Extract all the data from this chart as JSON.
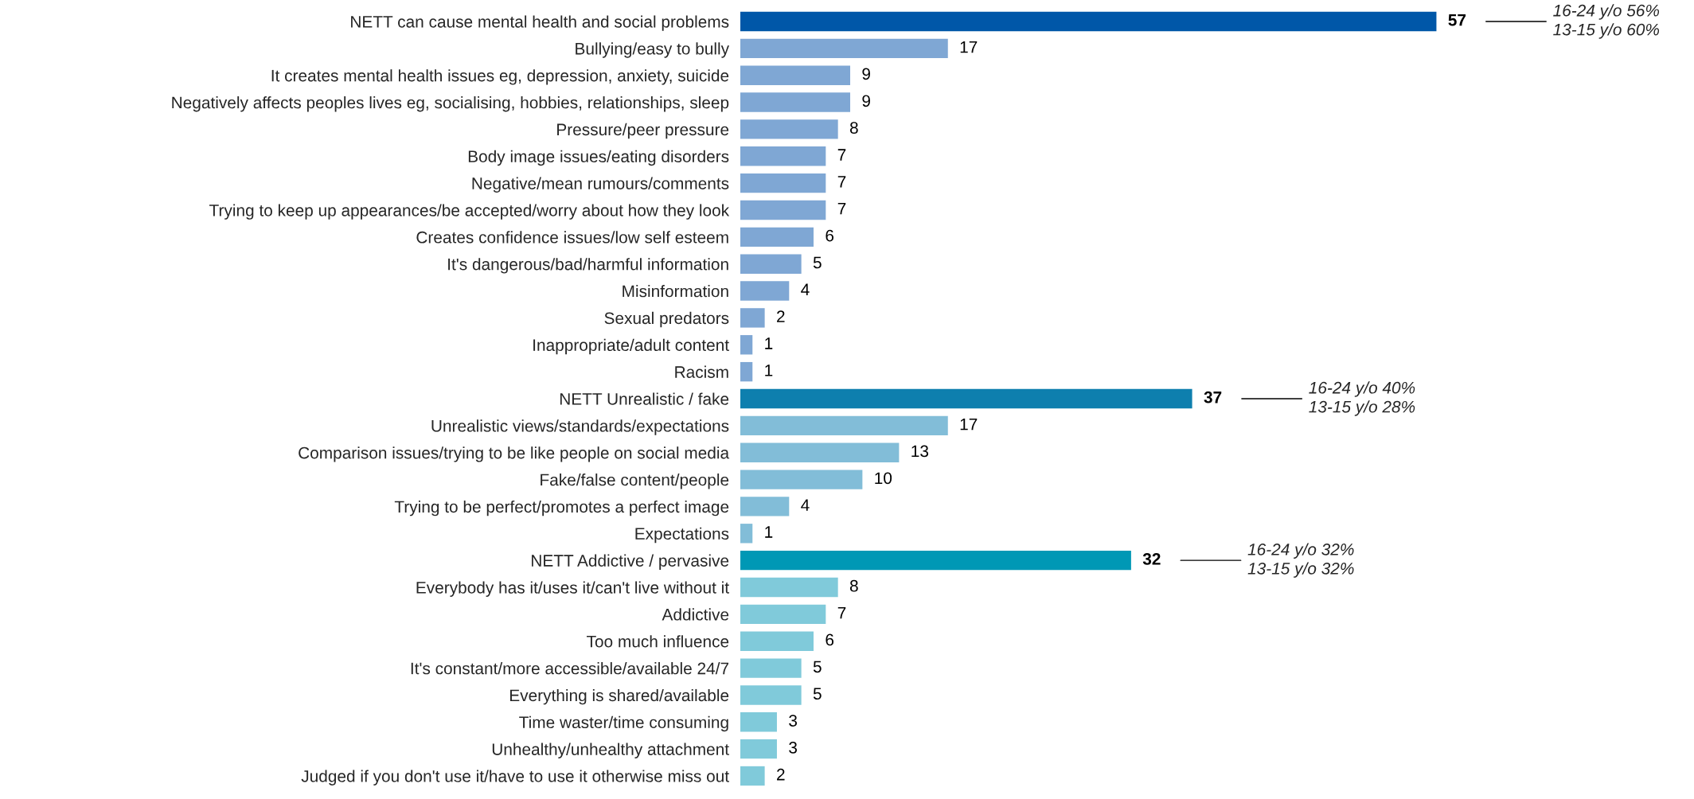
{
  "chart_data": {
    "type": "bar",
    "orientation": "horizontal",
    "categories": [
      "NETT can cause mental health and social problems",
      "Bullying/easy to bully",
      "It creates mental health issues eg, depression, anxiety, suicide",
      "Negatively affects peoples lives eg, socialising, hobbies, relationships, sleep",
      "Pressure/peer pressure",
      "Body image issues/eating disorders",
      "Negative/mean rumours/comments",
      "Trying to keep up appearances/be accepted/worry about how they look",
      "Creates confidence issues/low self esteem",
      "It's dangerous/bad/harmful information",
      "Misinformation",
      "Sexual predators",
      "Inappropriate/adult content",
      "Racism",
      "NETT Unrealistic / fake",
      "Unrealistic views/standards/expectations",
      "Comparison issues/trying to be like people on social media",
      "Fake/false content/people",
      "Trying to be perfect/promotes a perfect image",
      "Expectations",
      "NETT Addictive / pervasive",
      "Everybody has it/uses it/can't live without it",
      "Addictive",
      "Too much influence",
      "It's constant/more accessible/available 24/7",
      "Everything is shared/available",
      "Time waster/time consuming",
      "Unhealthy/unhealthy attachment",
      "Judged if you don't use it/have to use it otherwise miss out"
    ],
    "values": [
      57,
      17,
      9,
      9,
      8,
      7,
      7,
      7,
      6,
      5,
      4,
      2,
      1,
      1,
      37,
      17,
      13,
      10,
      4,
      1,
      32,
      8,
      7,
      6,
      5,
      5,
      3,
      3,
      2
    ],
    "colors": [
      "#0057a8",
      "#7fa7d4",
      "#7fa7d4",
      "#7fa7d4",
      "#7fa7d4",
      "#7fa7d4",
      "#7fa7d4",
      "#7fa7d4",
      "#7fa7d4",
      "#7fa7d4",
      "#7fa7d4",
      "#7fa7d4",
      "#7fa7d4",
      "#7fa7d4",
      "#0e7fae",
      "#82bdd8",
      "#82bdd8",
      "#82bdd8",
      "#82bdd8",
      "#82bdd8",
      "#0098b5",
      "#80cada",
      "#80cada",
      "#80cada",
      "#80cada",
      "#80cada",
      "#80cada",
      "#80cada",
      "#80cada"
    ],
    "data_labels": true,
    "grid": false,
    "legend": false,
    "annotations": [
      "16-24 y/o 56%\n13-15 y/o 60%",
      "16-24 y/o 40%\n13-15 y/o 28%",
      "16-24 y/o 32%\n13-15 y/o 32%"
    ]
  }
}
